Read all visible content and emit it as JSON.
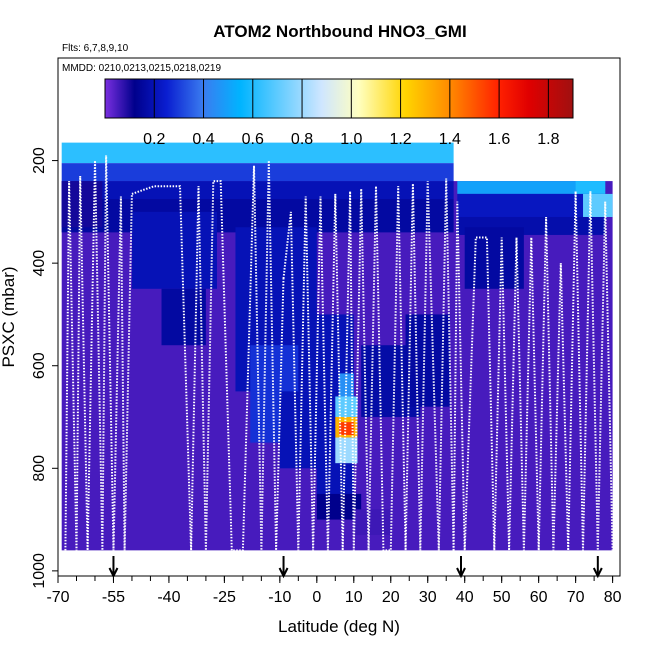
{
  "chart_data": {
    "type": "heatmap",
    "title": "ATOM2 Northbound HNO3_GMI",
    "flights_note": "Flts: 6,7,8,9,10",
    "dates_note": "MMDD: 0210,0213,0215,0218,0219",
    "xlabel": "Latitude (deg N)",
    "ylabel": "PSXC (mbar)",
    "xlim": [
      -70,
      82
    ],
    "ylim": [
      1010,
      0
    ],
    "x_ticks": [
      -70,
      -55,
      -40,
      -25,
      -10,
      0,
      10,
      20,
      30,
      40,
      50,
      60,
      70,
      80
    ],
    "x_minor_step": 5,
    "y_ticks": [
      200,
      400,
      600,
      800,
      1000
    ],
    "colorbar": {
      "min": 0.0,
      "max": 1.9,
      "ticks": [
        0.2,
        0.4,
        0.6,
        0.8,
        1.0,
        1.2,
        1.4,
        1.6,
        1.8
      ],
      "colors": [
        "#7a2fe0",
        "#00008c",
        "#0a1ed0",
        "#3a7cf0",
        "#00b4ff",
        "#cfe6ff",
        "#ffffc0",
        "#ffd400",
        "#ff8a00",
        "#ff2000",
        "#e00000",
        "#a01010"
      ],
      "stops": [
        0.0,
        0.12,
        0.25,
        0.4,
        0.55,
        0.88,
        1.03,
        1.22,
        1.4,
        1.6,
        1.72,
        1.9
      ]
    },
    "grid": false,
    "background_value": 0.05,
    "color_value_units": "HNO3_GMI",
    "cells": [
      {
        "x": [
          -69,
          37
        ],
        "y": [
          165,
          205
        ],
        "v": 0.62
      },
      {
        "x": [
          -69,
          37
        ],
        "y": [
          205,
          240
        ],
        "v": 0.3
      },
      {
        "x": [
          -69,
          37
        ],
        "y": [
          240,
          275
        ],
        "v": 0.2
      },
      {
        "x": [
          38,
          78
        ],
        "y": [
          240,
          265
        ],
        "v": 0.5
      },
      {
        "x": [
          70,
          78
        ],
        "y": [
          240,
          265
        ],
        "v": 0.6
      },
      {
        "x": [
          38,
          78
        ],
        "y": [
          265,
          310
        ],
        "v": 0.22
      },
      {
        "x": [
          72,
          80
        ],
        "y": [
          265,
          310
        ],
        "v": 0.7
      },
      {
        "x": [
          38,
          78
        ],
        "y": [
          310,
          345
        ],
        "v": 0.18
      },
      {
        "x": [
          -69,
          37
        ],
        "y": [
          275,
          340
        ],
        "v": 0.16
      },
      {
        "x": [
          -69,
          -58
        ],
        "y": [
          240,
          330
        ],
        "v": 0.1
      },
      {
        "x": [
          -50,
          -27
        ],
        "y": [
          300,
          450
        ],
        "v": 0.2
      },
      {
        "x": [
          -42,
          -30
        ],
        "y": [
          450,
          560
        ],
        "v": 0.16
      },
      {
        "x": [
          -22,
          0
        ],
        "y": [
          330,
          650
        ],
        "v": 0.2
      },
      {
        "x": [
          -18,
          -5
        ],
        "y": [
          560,
          750
        ],
        "v": 0.28
      },
      {
        "x": [
          -10,
          5
        ],
        "y": [
          650,
          800
        ],
        "v": 0.2
      },
      {
        "x": [
          0,
          10
        ],
        "y": [
          500,
          860
        ],
        "v": 0.2
      },
      {
        "x": [
          12,
          28
        ],
        "y": [
          560,
          700
        ],
        "v": 0.17
      },
      {
        "x": [
          0,
          12
        ],
        "y": [
          850,
          900
        ],
        "v": 0.12
      },
      {
        "x": [
          10,
          20
        ],
        "y": [
          880,
          930
        ],
        "v": 0.06
      },
      {
        "x": [
          6,
          10
        ],
        "y": [
          615,
          660
        ],
        "v": 0.45
      },
      {
        "x": [
          5,
          11
        ],
        "y": [
          660,
          700
        ],
        "v": 0.7
      },
      {
        "x": [
          5,
          11
        ],
        "y": [
          700,
          740
        ],
        "v": 1.3
      },
      {
        "x": [
          6,
          10
        ],
        "y": [
          710,
          735
        ],
        "v": 1.55
      },
      {
        "x": [
          5,
          11
        ],
        "y": [
          740,
          790
        ],
        "v": 0.8
      },
      {
        "x": [
          24,
          36
        ],
        "y": [
          500,
          680
        ],
        "v": 0.16
      },
      {
        "x": [
          40,
          56
        ],
        "y": [
          330,
          450
        ],
        "v": 0.16
      }
    ],
    "flight_tracks": [
      {
        "x": [
          -68,
          -67,
          -65,
          -64,
          -62,
          -60,
          -58,
          -57,
          -55,
          -53,
          -52,
          -50
        ],
        "y": [
          960,
          240,
          960,
          230,
          960,
          200,
          960,
          190,
          960,
          270,
          960,
          265
        ]
      },
      {
        "x": [
          -50,
          -44,
          -37,
          -34,
          -32,
          -30,
          -28,
          -26,
          -23,
          -20,
          -17,
          -15,
          -13,
          -11,
          -9
        ],
        "y": [
          265,
          250,
          250,
          960,
          250,
          960,
          240,
          240,
          960,
          960,
          210,
          960,
          200,
          960,
          430
        ]
      },
      {
        "x": [
          -9,
          -7,
          -5,
          -3,
          -1,
          1,
          3,
          5,
          7,
          9,
          10,
          12,
          14,
          16,
          18,
          20,
          22,
          24,
          26,
          28,
          30,
          33,
          35,
          37
        ],
        "y": [
          430,
          300,
          960,
          270,
          960,
          270,
          960,
          265,
          960,
          260,
          960,
          255,
          960,
          250,
          960,
          960,
          250,
          960,
          245,
          960,
          240,
          960,
          235,
          960
        ]
      },
      {
        "x": [
          37,
          38,
          40,
          43,
          46,
          48,
          50,
          52,
          54,
          56,
          58,
          60,
          62,
          64,
          66,
          68,
          70,
          72,
          74,
          76,
          78,
          80
        ],
        "y": [
          960,
          280,
          960,
          350,
          350,
          960,
          350,
          960,
          350,
          960,
          350,
          960,
          310,
          960,
          400,
          960,
          260,
          960,
          260,
          960,
          280,
          960
        ]
      }
    ],
    "flight_markers_lat": [
      -55,
      -9,
      39,
      76
    ]
  }
}
